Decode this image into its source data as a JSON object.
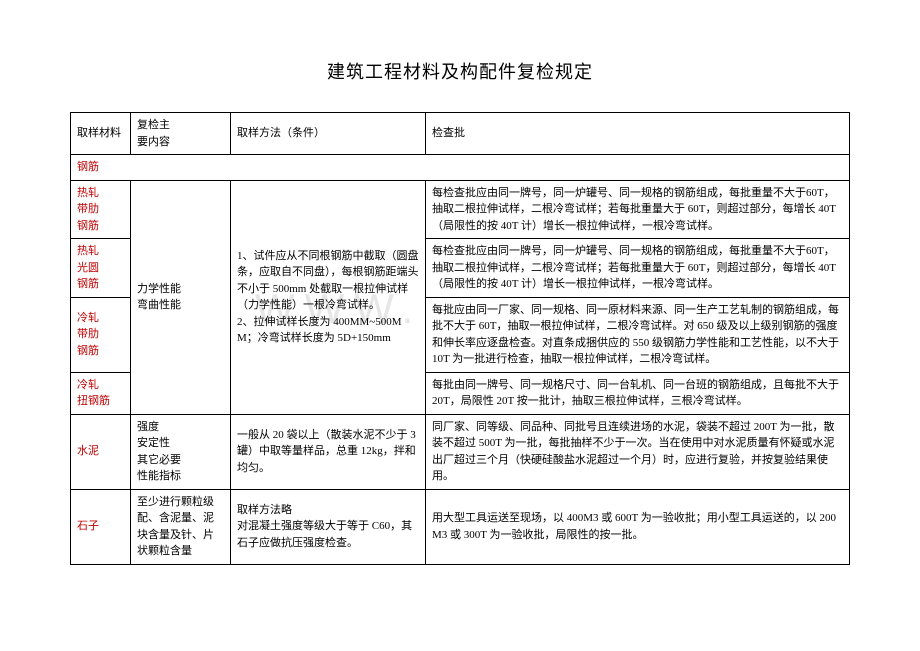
{
  "title": "建筑工程材料及构配件复检规定",
  "watermark": "WWW.",
  "header": {
    "c1": "取样材料",
    "c2": "复检主\n要内容",
    "c3": "取样方法（条件）",
    "c4": "检查批"
  },
  "sections": {
    "rebar_heading": "钢筋",
    "r1_material": "热轧\n带肋\n钢筋",
    "r2_material": "热轧\n光圆\n钢筋",
    "r3_material": "冷轧\n带肋\n钢筋",
    "r4_material": "冷轧\n扭钢筋",
    "rebar_content": "力学性能\n弯曲性能",
    "rebar_method": "1、试件应从不同根钢筋中截取（圆盘条，应取自不同盘），每根钢筋距端头不小于 500mm 处截取一根拉伸试样（力学性能）一根冷弯试样。\n2、拉伸试样长度为 400MM~500MM；冷弯试样长度为 5D+150mm",
    "r1_batch": "每检查批应由同一牌号，同一炉罐号、同一规格的钢筋组成，每批重量不大于60T，抽取二根拉伸试样，二根冷弯试样；若每批重量大于 60T，则超过部分，每增长 40T（局限性的按 40T 计）增长一根拉伸试样，一根冷弯试样。",
    "r2_batch": "每检查批应由同一牌号，同一炉罐号、同一规格的钢筋组成，每批重量不大于60T，抽取二根拉伸试样，二根冷弯试样；若每批重量大于 60T，则超过部分，每增长 40T（局限性的按 40T 计）增长一根拉伸试样，一根冷弯试样。",
    "r3_batch": "每批应由同一厂家、同一规格、同一原材料来源、同一生产工艺轧制的钢筋组成，每批不大于 60T，抽取一根拉伸试样，二根冷弯试样。对 650 级及以上级别钢筋的强度和伸长率应逐盘检查。对直条成捆供应的 550 级钢筋力学性能和工艺性能，以不大于 10T 为一批进行检查，抽取一根拉伸试样，二根冷弯试样。",
    "r4_batch": "每批由同一牌号、同一规格尺寸、同一台轧机、同一台班的钢筋组成，且每批不大于 20T，局限性 20T 按一批计，抽取三根拉伸试样，三根冷弯试样。",
    "cement_material": "水泥",
    "cement_content": "强度\n安定性\n其它必要\n性能指标",
    "cement_method": "一般从 20 袋以上（散装水泥不少于 3 罐）中取等量样品，总重 12kg，拌和均匀。",
    "cement_batch": "同厂家、同等级、同品种、同批号且连续进场的水泥，袋装不超过 200T 为一批，散装不超过 500T 为一批，每批抽样不少于一次。当在使用中对水泥质量有怀疑或水泥出厂超过三个月（快硬硅酸盐水泥超过一个月）时，应进行复验，并按复验结果使用。",
    "stone_material": "石子",
    "stone_content": "至少进行颗粒级配、含泥量、泥块含量及针、片状颗粒含量",
    "stone_method": "取样方法略\n对混凝土强度等级大于等于 C60，其石子应做抗压强度检查。",
    "stone_batch": "用大型工具运送至现场，以 400M3 或 600T 为一验收批；用小型工具运送的，以 200M3 或 300T 为一验收批，局限性的按一批。"
  }
}
